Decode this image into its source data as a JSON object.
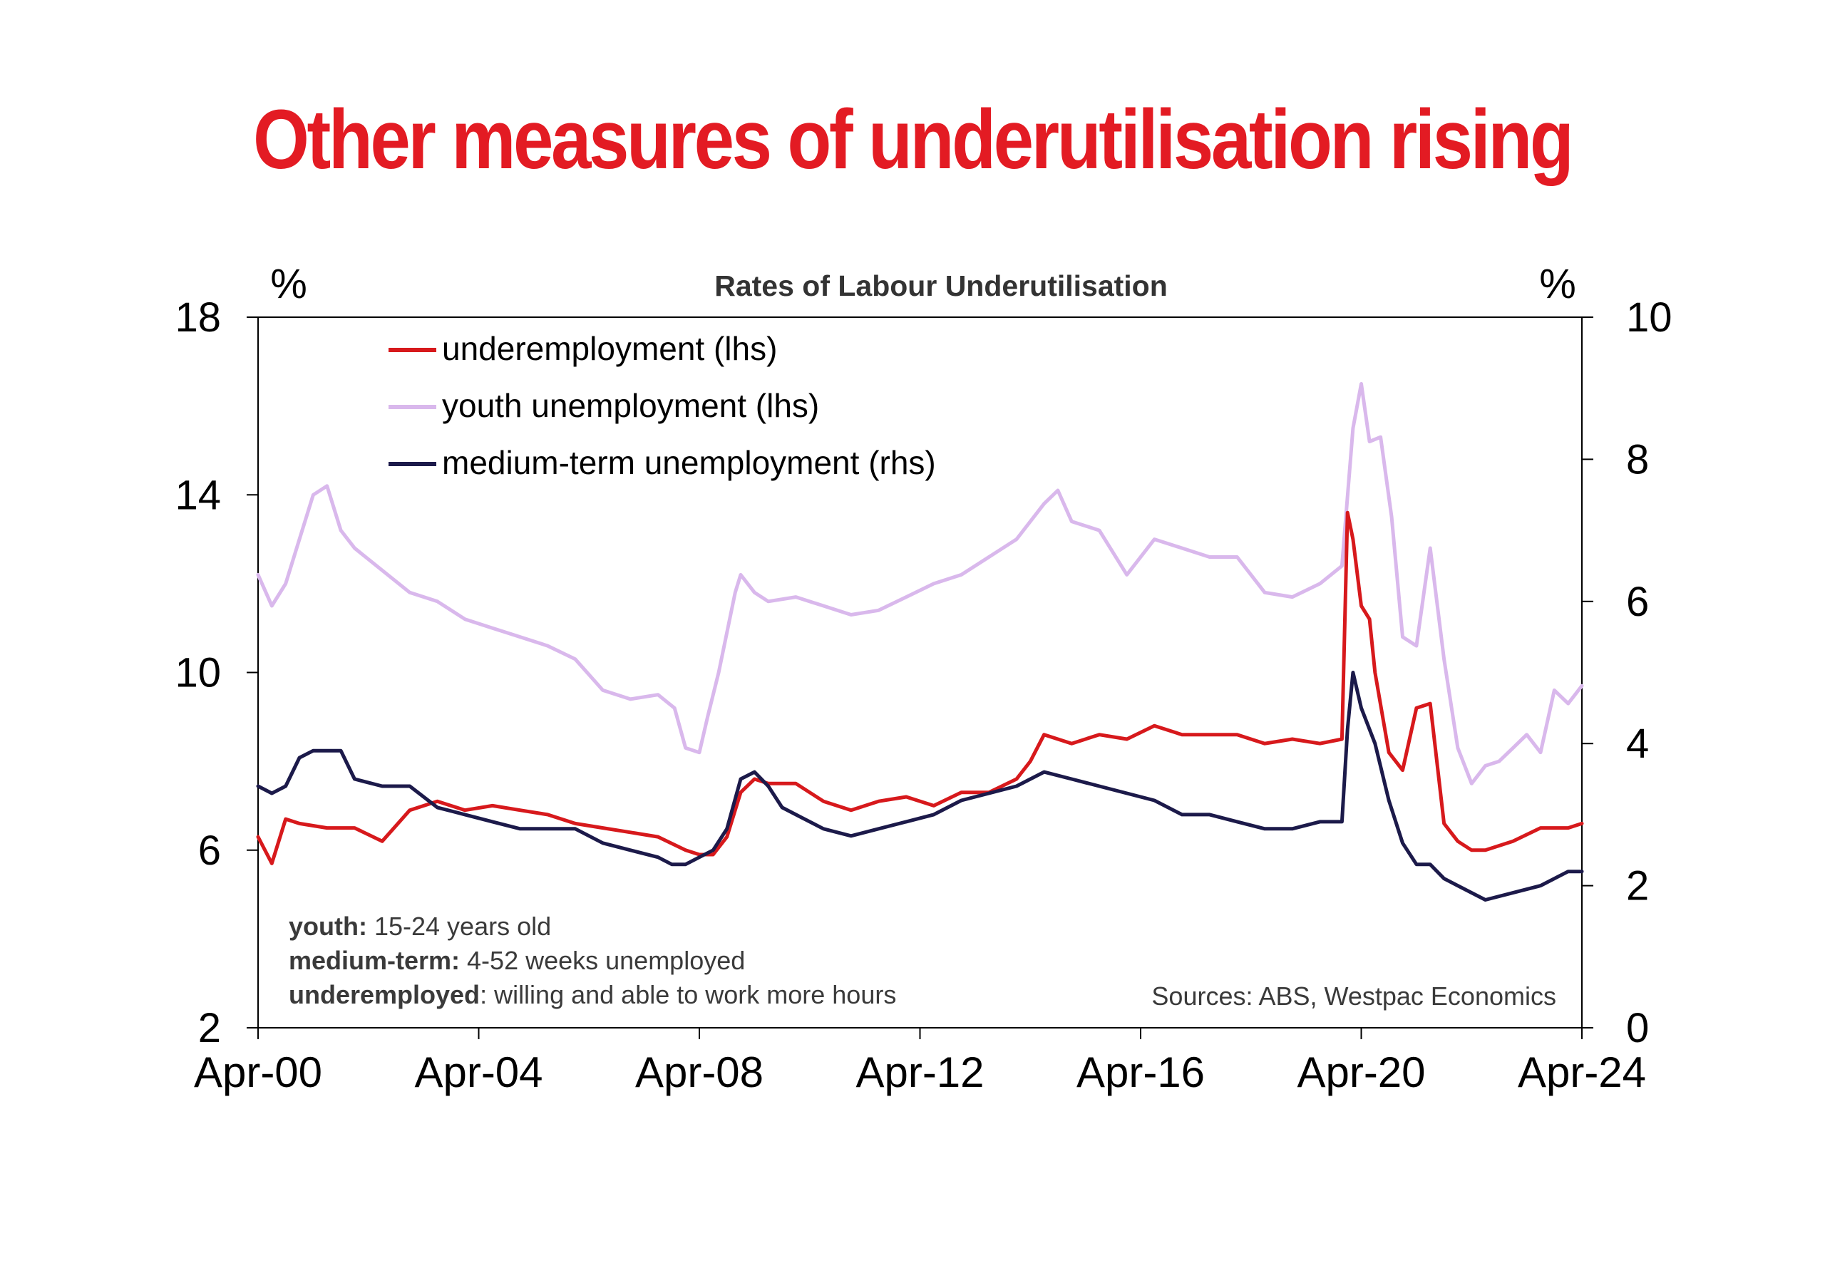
{
  "slide": {
    "title": "Other measures of underutilisation rising"
  },
  "colors": {
    "title": "#e31b23",
    "underemployment": "#d7191c",
    "youth": "#d9b8ec",
    "medium_term": "#1c1a4a"
  },
  "chart_data": {
    "type": "line",
    "title": "Rates of Labour Underutilisation",
    "left_axis_unit": "%",
    "right_axis_unit": "%",
    "left_axis": {
      "ylim": [
        2,
        18
      ],
      "ticks": [
        2,
        6,
        10,
        14,
        18
      ]
    },
    "right_axis": {
      "ylim": [
        0,
        10
      ],
      "ticks": [
        0,
        2,
        4,
        6,
        8,
        10
      ]
    },
    "x_axis": {
      "range": [
        2000.25,
        2024.25
      ],
      "ticks": [
        {
          "x": 2000.25,
          "label": "Apr-00"
        },
        {
          "x": 2004.25,
          "label": "Apr-04"
        },
        {
          "x": 2008.25,
          "label": "Apr-08"
        },
        {
          "x": 2012.25,
          "label": "Apr-12"
        },
        {
          "x": 2016.25,
          "label": "Apr-16"
        },
        {
          "x": 2020.25,
          "label": "Apr-20"
        },
        {
          "x": 2024.25,
          "label": "Apr-24"
        }
      ]
    },
    "legend": [
      {
        "key": "underemployment",
        "label": "underemployment (lhs)"
      },
      {
        "key": "youth",
        "label": "youth unemployment (lhs)"
      },
      {
        "key": "medium_term",
        "label": "medium-term unemployment (rhs)"
      }
    ],
    "series": [
      {
        "key": "underemployment",
        "name": "underemployment (lhs)",
        "axis": "left",
        "x": [
          2000.25,
          2000.5,
          2000.75,
          2001.0,
          2001.5,
          2002.0,
          2002.5,
          2003.0,
          2003.5,
          2004.0,
          2004.5,
          2005.0,
          2005.5,
          2006.0,
          2006.5,
          2007.0,
          2007.5,
          2008.0,
          2008.25,
          2008.5,
          2008.75,
          2009.0,
          2009.25,
          2009.5,
          2010.0,
          2010.5,
          2011.0,
          2011.5,
          2012.0,
          2012.5,
          2013.0,
          2013.5,
          2014.0,
          2014.25,
          2014.5,
          2015.0,
          2015.5,
          2016.0,
          2016.5,
          2017.0,
          2017.5,
          2018.0,
          2018.5,
          2019.0,
          2019.5,
          2019.9,
          2020.0,
          2020.1,
          2020.25,
          2020.4,
          2020.5,
          2020.75,
          2021.0,
          2021.25,
          2021.5,
          2021.75,
          2022.0,
          2022.25,
          2022.5,
          2023.0,
          2023.5,
          2024.0,
          2024.25
        ],
        "values": [
          6.3,
          5.7,
          6.7,
          6.6,
          6.5,
          6.5,
          6.2,
          6.9,
          7.1,
          6.9,
          7.0,
          6.9,
          6.8,
          6.6,
          6.5,
          6.4,
          6.3,
          6.0,
          5.9,
          5.9,
          6.3,
          7.3,
          7.6,
          7.5,
          7.5,
          7.1,
          6.9,
          7.1,
          7.2,
          7.0,
          7.3,
          7.3,
          7.6,
          8.0,
          8.6,
          8.4,
          8.6,
          8.5,
          8.8,
          8.6,
          8.6,
          8.6,
          8.4,
          8.5,
          8.4,
          8.5,
          13.6,
          13.0,
          11.5,
          11.2,
          10.0,
          8.2,
          7.8,
          9.2,
          9.3,
          6.6,
          6.2,
          6.0,
          6.0,
          6.2,
          6.5,
          6.5,
          6.6
        ]
      },
      {
        "key": "youth",
        "name": "youth unemployment (lhs)",
        "axis": "left",
        "x": [
          2000.25,
          2000.5,
          2000.75,
          2001.0,
          2001.25,
          2001.5,
          2001.75,
          2002.0,
          2002.5,
          2003.0,
          2003.5,
          2004.0,
          2004.5,
          2005.0,
          2005.5,
          2006.0,
          2006.5,
          2007.0,
          2007.5,
          2007.8,
          2008.0,
          2008.25,
          2008.4,
          2008.6,
          2008.9,
          2009.0,
          2009.25,
          2009.5,
          2010.0,
          2010.5,
          2011.0,
          2011.5,
          2012.0,
          2012.5,
          2013.0,
          2013.5,
          2014.0,
          2014.5,
          2014.75,
          2015.0,
          2015.5,
          2016.0,
          2016.5,
          2017.0,
          2017.5,
          2018.0,
          2018.5,
          2019.0,
          2019.5,
          2019.9,
          2020.1,
          2020.25,
          2020.4,
          2020.6,
          2020.8,
          2021.0,
          2021.25,
          2021.5,
          2021.75,
          2022.0,
          2022.25,
          2022.5,
          2022.75,
          2023.0,
          2023.25,
          2023.5,
          2023.75,
          2024.0,
          2024.25
        ],
        "values": [
          12.2,
          11.5,
          12.0,
          13.0,
          14.0,
          14.2,
          13.2,
          12.8,
          12.3,
          11.8,
          11.6,
          11.2,
          11.0,
          10.8,
          10.6,
          10.3,
          9.6,
          9.4,
          9.5,
          9.2,
          8.3,
          8.2,
          9.0,
          10.0,
          11.8,
          12.2,
          11.8,
          11.6,
          11.7,
          11.5,
          11.3,
          11.4,
          11.7,
          12.0,
          12.2,
          12.6,
          13.0,
          13.8,
          14.1,
          13.4,
          13.2,
          12.2,
          13.0,
          12.8,
          12.6,
          12.6,
          11.8,
          11.7,
          12.0,
          12.4,
          15.5,
          16.5,
          15.2,
          15.3,
          13.5,
          10.8,
          10.6,
          12.8,
          10.3,
          8.3,
          7.5,
          7.9,
          8.0,
          8.3,
          8.6,
          8.2,
          9.6,
          9.3,
          9.7
        ]
      },
      {
        "key": "medium_term",
        "name": "medium-term unemployment (rhs)",
        "axis": "right",
        "x": [
          2000.25,
          2000.5,
          2000.75,
          2001.0,
          2001.25,
          2001.5,
          2001.75,
          2002.0,
          2002.5,
          2003.0,
          2003.5,
          2004.0,
          2004.5,
          2005.0,
          2005.5,
          2006.0,
          2006.5,
          2007.0,
          2007.5,
          2007.75,
          2008.0,
          2008.25,
          2008.5,
          2008.75,
          2009.0,
          2009.25,
          2009.5,
          2009.75,
          2010.0,
          2010.5,
          2011.0,
          2011.5,
          2012.0,
          2012.5,
          2013.0,
          2013.5,
          2014.0,
          2014.5,
          2015.0,
          2015.5,
          2016.0,
          2016.5,
          2017.0,
          2017.5,
          2018.0,
          2018.5,
          2019.0,
          2019.5,
          2019.9,
          2020.0,
          2020.1,
          2020.25,
          2020.5,
          2020.75,
          2021.0,
          2021.25,
          2021.5,
          2021.75,
          2022.0,
          2022.5,
          2023.0,
          2023.5,
          2024.0,
          2024.25
        ],
        "values": [
          3.4,
          3.3,
          3.4,
          3.8,
          3.9,
          3.9,
          3.9,
          3.5,
          3.4,
          3.4,
          3.1,
          3.0,
          2.9,
          2.8,
          2.8,
          2.8,
          2.6,
          2.5,
          2.4,
          2.3,
          2.3,
          2.4,
          2.5,
          2.8,
          3.5,
          3.6,
          3.4,
          3.1,
          3.0,
          2.8,
          2.7,
          2.8,
          2.9,
          3.0,
          3.2,
          3.3,
          3.4,
          3.6,
          3.5,
          3.4,
          3.3,
          3.2,
          3.0,
          3.0,
          2.9,
          2.8,
          2.8,
          2.9,
          2.9,
          4.2,
          5.0,
          4.5,
          4.0,
          3.2,
          2.6,
          2.3,
          2.3,
          2.1,
          2.0,
          1.8,
          1.9,
          2.0,
          2.2,
          2.2
        ]
      }
    ],
    "notes": [
      {
        "bold": "youth:",
        "text": " 15-24 years old"
      },
      {
        "bold": "medium-term:",
        "text": " 4-52 weeks unemployed"
      },
      {
        "bold": "underemployed",
        "text": ": willing and able to work more hours"
      }
    ],
    "source": "Sources: ABS, Westpac Economics"
  }
}
